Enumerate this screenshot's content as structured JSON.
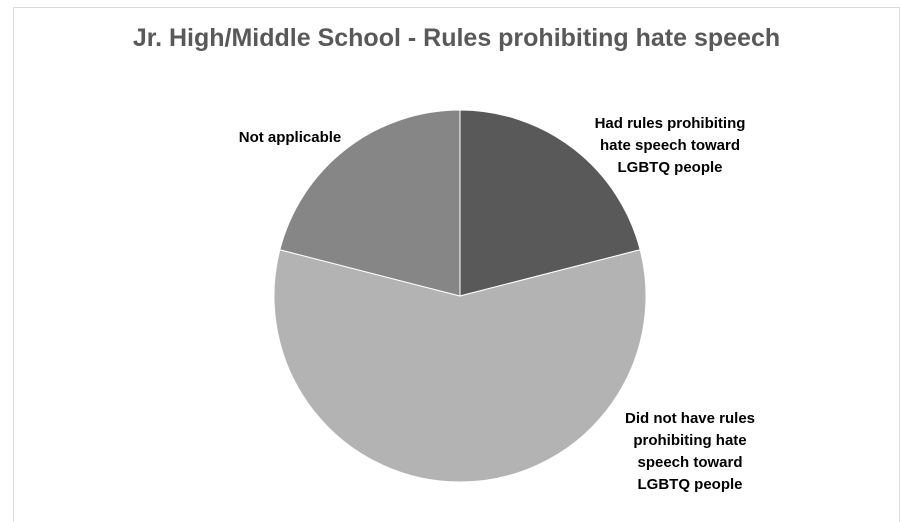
{
  "chart_data": {
    "type": "pie",
    "title": "Jr. High/Middle School - Rules prohibiting hate speech",
    "slices": [
      {
        "label": "Had rules prohibiting\nhate speech toward\nLGBTQ people",
        "value": 21,
        "color": "#595959"
      },
      {
        "label": "Did not have rules\nprohibiting hate\nspeech toward\nLGBTQ people",
        "value": 58,
        "color": "#b3b3b3"
      },
      {
        "label": "Not applicable",
        "value": 21,
        "color": "#868686"
      }
    ],
    "start_angle_deg": 0,
    "direction": "clockwise",
    "legend": "none",
    "data_labels": "outside"
  }
}
